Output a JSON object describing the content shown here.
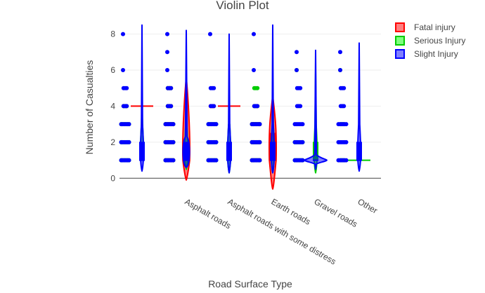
{
  "chart_data": {
    "type": "violin",
    "title": "Violin Plot",
    "xlabel": "Road Surface Type",
    "ylabel": "Number of Casualties",
    "categories": [
      "",
      "Asphalt roads",
      "Asphalt roads with some distress",
      "Earth roads",
      "Gravel roads",
      "Other"
    ],
    "yticks": [
      0,
      2,
      4,
      6,
      8
    ],
    "ylim": [
      -0.3,
      8.8
    ],
    "legend_position": "top-right",
    "grid": true,
    "series": [
      {
        "name": "Fatal injury",
        "color": "#ff0000",
        "fill": "rgba(255,0,0,0.5)",
        "violins": [
          {
            "category": 0,
            "min": 4,
            "max": 4,
            "points": [
              4
            ],
            "median": 4,
            "q1": 4,
            "q3": 4,
            "shape": "flat"
          },
          {
            "category": 1,
            "min": -0.1,
            "max": 5.6,
            "points": [
              1,
              2,
              3,
              4,
              5
            ],
            "median": 1,
            "q1": 1,
            "q3": 2,
            "shape": "spindle"
          },
          {
            "category": 2,
            "min": 4,
            "max": 4,
            "points": [
              4
            ],
            "median": 4,
            "q1": 4,
            "q3": 4,
            "shape": "flat"
          },
          {
            "category": 3,
            "min": -0.6,
            "max": 4.6,
            "points": [
              1,
              2,
              3,
              4
            ],
            "median": 1,
            "q1": 1,
            "q3": 2.5,
            "shape": "spindle"
          }
        ]
      },
      {
        "name": "Serious Injury",
        "color": "#00cc00",
        "fill": "rgba(0,255,0,0.5)",
        "violins": [
          {
            "category": 0,
            "min": 1,
            "max": 4,
            "points": [
              1,
              2,
              3,
              4
            ],
            "median": 1,
            "q1": 1,
            "q3": 2,
            "shape": "needle"
          },
          {
            "category": 1,
            "min": 0.5,
            "max": 5,
            "points": [
              1,
              2,
              3,
              4,
              5
            ],
            "median": 1,
            "q1": 1,
            "q3": 2,
            "shape": "needle"
          },
          {
            "category": 2,
            "min": 0.3,
            "max": 3,
            "points": [
              1,
              2,
              3
            ],
            "median": 1,
            "q1": 1,
            "q3": 2,
            "shape": "needle"
          },
          {
            "category": 3,
            "min": 0.3,
            "max": 5,
            "points": [
              1,
              2,
              3,
              4,
              5
            ],
            "median": 1,
            "q1": 1,
            "q3": 2,
            "shape": "needle"
          },
          {
            "category": 4,
            "min": 0.3,
            "max": 6,
            "points": [
              1,
              2,
              6
            ],
            "median": 1,
            "q1": 1,
            "q3": 2,
            "shape": "needle"
          },
          {
            "category": 5,
            "min": 0.9,
            "max": 6,
            "points": [
              1,
              3,
              6
            ],
            "median": 1,
            "q1": 1,
            "q3": 1,
            "shape": "flat"
          }
        ]
      },
      {
        "name": "Slight Injury",
        "color": "#0000ff",
        "fill": "rgba(0,0,255,0.5)",
        "violins": [
          {
            "category": 0,
            "min": 0.4,
            "max": 8.5,
            "points": [
              1,
              2,
              3,
              4,
              5,
              6,
              8
            ],
            "median": 1,
            "q1": 1,
            "q3": 2,
            "shape": "needle"
          },
          {
            "category": 1,
            "min": 0.6,
            "max": 8.2,
            "points": [
              1,
              2,
              3,
              4,
              5,
              6,
              7,
              8
            ],
            "median": 1,
            "q1": 1,
            "q3": 2,
            "shape": "bulb"
          },
          {
            "category": 2,
            "min": 0.3,
            "max": 8,
            "points": [
              1,
              2,
              3,
              4,
              5,
              8
            ],
            "median": 1,
            "q1": 1,
            "q3": 2,
            "shape": "needle"
          },
          {
            "category": 3,
            "min": 0.3,
            "max": 8.5,
            "points": [
              1,
              2,
              3,
              4,
              6,
              8
            ],
            "median": 1,
            "q1": 1,
            "q3": 2,
            "shape": "needle"
          },
          {
            "category": 4,
            "min": 0.5,
            "max": 7.1,
            "points": [
              1,
              2,
              3,
              4,
              5,
              6,
              7
            ],
            "median": 1,
            "q1": 1,
            "q3": 1,
            "shape": "wide"
          },
          {
            "category": 5,
            "min": 0.4,
            "max": 7.5,
            "points": [
              1,
              2,
              3,
              4,
              5,
              6,
              7
            ],
            "median": 1,
            "q1": 1,
            "q3": 2,
            "shape": "needle"
          }
        ]
      }
    ]
  }
}
